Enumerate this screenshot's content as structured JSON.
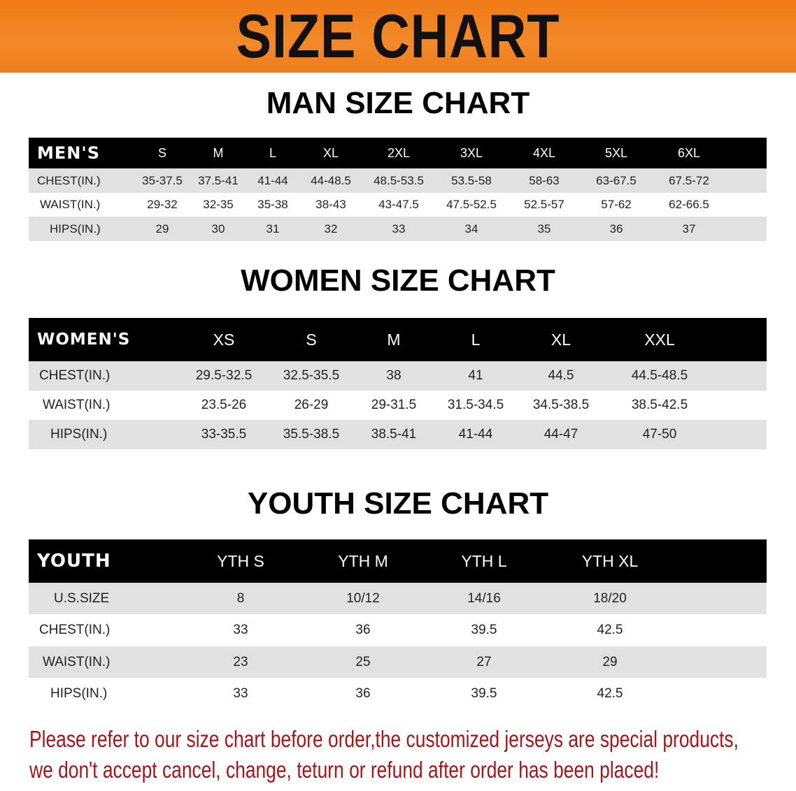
{
  "banner": {
    "title": "SIZE CHART",
    "color": "#f07d1a"
  },
  "men": {
    "title": "MAN SIZE CHART",
    "header": [
      "MEN'S",
      "S",
      "M",
      "L",
      "XL",
      "2XL",
      "3XL",
      "4XL",
      "5XL",
      "6XL"
    ],
    "rows": [
      [
        "CHEST(IN.)",
        "35-37.5",
        "37.5-41",
        "41-44",
        "44-48.5",
        "48.5-53.5",
        "53.5-58",
        "58-63",
        "63-67.5",
        "67.5-72"
      ],
      [
        "WAIST(IN.)",
        "29-32",
        "32-35",
        "35-38",
        "38-43",
        "43-47.5",
        "47.5-52.5",
        "52.5-57",
        "57-62",
        "62-66.5"
      ],
      [
        "HIPS(IN.)",
        "29",
        "30",
        "31",
        "32",
        "33",
        "34",
        "35",
        "36",
        "37"
      ]
    ]
  },
  "women": {
    "title": "WOMEN SIZE CHART",
    "header": [
      "WOMEN'S",
      "XS",
      "S",
      "M",
      "L",
      "XL",
      "XXL"
    ],
    "rows": [
      [
        "CHEST(IN.)",
        "29.5-32.5",
        "32.5-35.5",
        "38",
        "41",
        "44.5",
        "44.5-48.5"
      ],
      [
        "WAIST(IN.)",
        "23.5-26",
        "26-29",
        "29-31.5",
        "31.5-34.5",
        "34.5-38.5",
        "38.5-42.5"
      ],
      [
        "HIPS(IN.)",
        "33-35.5",
        "35.5-38.5",
        "38.5-41",
        "41-44",
        "44-47",
        "47-50"
      ]
    ]
  },
  "youth": {
    "title": "YOUTH SIZE CHART",
    "header": [
      "YOUTH",
      "YTH S",
      "YTH M",
      "YTH L",
      "YTH XL"
    ],
    "rows": [
      [
        "U.S.SIZE",
        "8",
        "10/12",
        "14/16",
        "18/20"
      ],
      [
        "CHEST(IN.)",
        "33",
        "36",
        "39.5",
        "42.5"
      ],
      [
        "WAIST(IN.)",
        "23",
        "25",
        "27",
        "29"
      ],
      [
        "HIPS(IN.)",
        "33",
        "36",
        "39.5",
        "42.5"
      ]
    ]
  },
  "note": {
    "line1": "Please refer to our size chart before order,the customized jerseys are special products,",
    "line2": "we don't accept cancel, change, teturn or refund after order has been placed!",
    "color": "#a3161a"
  }
}
